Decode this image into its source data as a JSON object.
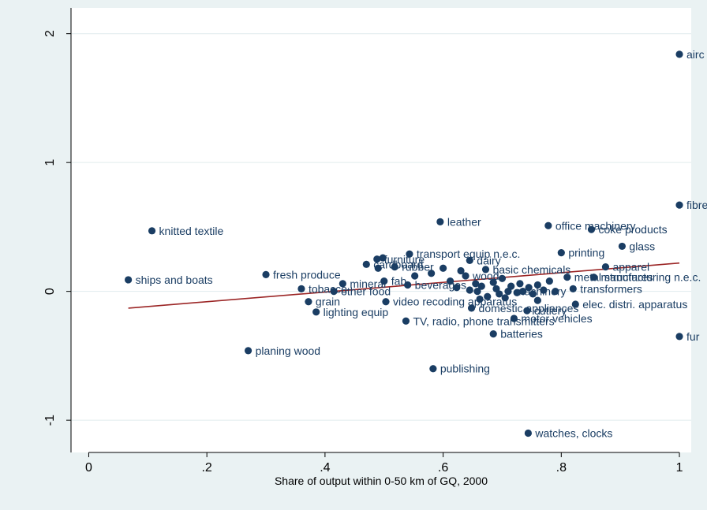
{
  "chart_data": {
    "type": "scatter",
    "title": "",
    "xlabel": "Share of output within 0-50 km of GQ, 2000",
    "ylabel": "",
    "xlim": [
      -0.03,
      1.02
    ],
    "ylim": [
      -1.25,
      2.2
    ],
    "x_ticks": [
      0,
      0.2,
      0.4,
      0.6,
      0.8,
      1
    ],
    "x_tick_labels": [
      "0",
      ".2",
      ".4",
      ".6",
      ".8",
      "1"
    ],
    "y_ticks": [
      -1,
      0,
      1,
      2
    ],
    "y_tick_labels": [
      "-1",
      "0",
      "1",
      "2"
    ],
    "grid": "horizontal",
    "colors": {
      "background": "#eaf2f3",
      "plot_area": "#ffffff",
      "marker": "#1a3d63",
      "fit_line": "#9b2525",
      "grid": "#e1ecee"
    },
    "fit_line": {
      "x": [
        0.067,
        1.0
      ],
      "y": [
        -0.13,
        0.22
      ]
    },
    "points": [
      {
        "x": 1.0,
        "y": 1.84,
        "label": "airc"
      },
      {
        "x": 1.0,
        "y": 0.67,
        "label": "fibre"
      },
      {
        "x": 1.0,
        "y": -0.35,
        "label": "fur"
      },
      {
        "x": 0.107,
        "y": 0.47,
        "label": "knitted textile"
      },
      {
        "x": 0.067,
        "y": 0.09,
        "label": "ships and boats"
      },
      {
        "x": 0.595,
        "y": 0.54,
        "label": "leather"
      },
      {
        "x": 0.778,
        "y": 0.51,
        "label": "office machinery"
      },
      {
        "x": 0.851,
        "y": 0.48,
        "label": "coke products"
      },
      {
        "x": 0.903,
        "y": 0.35,
        "label": "glass"
      },
      {
        "x": 0.8,
        "y": 0.3,
        "label": "printing"
      },
      {
        "x": 0.875,
        "y": 0.19,
        "label": "apparel"
      },
      {
        "x": 0.543,
        "y": 0.29,
        "label": "transport equip n.e.c."
      },
      {
        "x": 0.645,
        "y": 0.24,
        "label": "dairy"
      },
      {
        "x": 0.672,
        "y": 0.17,
        "label": "basic chemicals"
      },
      {
        "x": 0.3,
        "y": 0.13,
        "label": "fresh produce"
      },
      {
        "x": 0.43,
        "y": 0.06,
        "label": "mineral"
      },
      {
        "x": 0.36,
        "y": 0.02,
        "label": "tobacco"
      },
      {
        "x": 0.415,
        "y": 0.0,
        "label": "other food"
      },
      {
        "x": 0.372,
        "y": -0.08,
        "label": "grain"
      },
      {
        "x": 0.385,
        "y": -0.16,
        "label": "lighting equip"
      },
      {
        "x": 0.27,
        "y": -0.46,
        "label": "planing wood"
      },
      {
        "x": 0.503,
        "y": -0.08,
        "label": "video recoding apparatus"
      },
      {
        "x": 0.537,
        "y": -0.23,
        "label": "TV, radio, phone transmitters"
      },
      {
        "x": 0.685,
        "y": -0.33,
        "label": "batteries"
      },
      {
        "x": 0.583,
        "y": -0.6,
        "label": "publishing"
      },
      {
        "x": 0.744,
        "y": -1.1,
        "label": "watches, clocks"
      },
      {
        "x": 0.5,
        "y": 0.08,
        "label": "fab"
      },
      {
        "x": 0.54,
        "y": 0.05,
        "label": "beverages"
      },
      {
        "x": 0.638,
        "y": 0.12,
        "label": "wood"
      },
      {
        "x": 0.648,
        "y": -0.13,
        "label": "domestic appliances"
      },
      {
        "x": 0.742,
        "y": -0.15,
        "label": "cutlery"
      },
      {
        "x": 0.72,
        "y": -0.21,
        "label": "motor vehicles"
      },
      {
        "x": 0.81,
        "y": 0.11,
        "label": "metal structures"
      },
      {
        "x": 0.855,
        "y": 0.11,
        "label": "manufacturing n.e.c."
      },
      {
        "x": 0.82,
        "y": 0.02,
        "label": "transformers"
      },
      {
        "x": 0.824,
        "y": -0.1,
        "label": "elec. distri. apparatus"
      },
      {
        "x": 0.71,
        "y": 0.0,
        "label": "machinery"
      },
      {
        "x": 0.47,
        "y": 0.21,
        "label": "cardboard"
      },
      {
        "x": 0.488,
        "y": 0.25,
        "label": "furniture"
      },
      {
        "x": 0.518,
        "y": 0.19,
        "label": "rubber"
      },
      {
        "x": 0.498,
        "y": 0.26,
        "label": ""
      },
      {
        "x": 0.49,
        "y": 0.18,
        "label": ""
      },
      {
        "x": 0.58,
        "y": 0.14,
        "label": ""
      },
      {
        "x": 0.6,
        "y": 0.18,
        "label": ""
      },
      {
        "x": 0.552,
        "y": 0.12,
        "label": ""
      },
      {
        "x": 0.623,
        "y": 0.03,
        "label": ""
      },
      {
        "x": 0.655,
        "y": 0.06,
        "label": ""
      },
      {
        "x": 0.645,
        "y": 0.01,
        "label": ""
      },
      {
        "x": 0.658,
        "y": 0.0,
        "label": ""
      },
      {
        "x": 0.665,
        "y": 0.04,
        "label": ""
      },
      {
        "x": 0.675,
        "y": -0.04,
        "label": ""
      },
      {
        "x": 0.685,
        "y": 0.07,
        "label": ""
      },
      {
        "x": 0.69,
        "y": 0.02,
        "label": ""
      },
      {
        "x": 0.695,
        "y": -0.02,
        "label": ""
      },
      {
        "x": 0.7,
        "y": 0.1,
        "label": ""
      },
      {
        "x": 0.705,
        "y": -0.05,
        "label": ""
      },
      {
        "x": 0.715,
        "y": 0.04,
        "label": ""
      },
      {
        "x": 0.725,
        "y": -0.01,
        "label": ""
      },
      {
        "x": 0.73,
        "y": 0.06,
        "label": ""
      },
      {
        "x": 0.735,
        "y": 0.0,
        "label": ""
      },
      {
        "x": 0.745,
        "y": 0.03,
        "label": ""
      },
      {
        "x": 0.752,
        "y": -0.02,
        "label": ""
      },
      {
        "x": 0.76,
        "y": 0.05,
        "label": ""
      },
      {
        "x": 0.77,
        "y": 0.01,
        "label": ""
      },
      {
        "x": 0.78,
        "y": 0.08,
        "label": ""
      },
      {
        "x": 0.79,
        "y": 0.0,
        "label": ""
      },
      {
        "x": 0.662,
        "y": -0.06,
        "label": ""
      },
      {
        "x": 0.612,
        "y": 0.08,
        "label": ""
      },
      {
        "x": 0.63,
        "y": 0.16,
        "label": ""
      },
      {
        "x": 0.76,
        "y": -0.07,
        "label": ""
      }
    ]
  }
}
